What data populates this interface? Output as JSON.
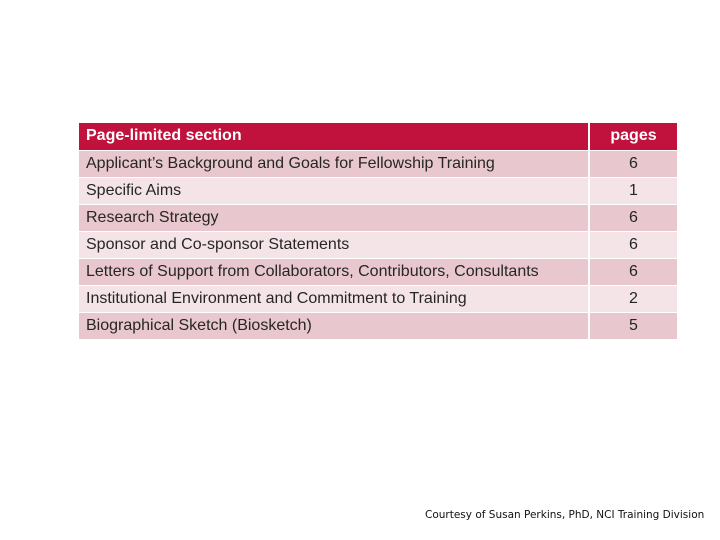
{
  "table": {
    "headers": {
      "section": "Page-limited section",
      "pages": "pages"
    },
    "rows": [
      {
        "section": "Applicant’s Background and Goals for Fellowship Training",
        "pages": "6"
      },
      {
        "section": "Specific Aims",
        "pages": "1"
      },
      {
        "section": "Research Strategy",
        "pages": "6"
      },
      {
        "section": "Sponsor and Co-sponsor Statements",
        "pages": "6"
      },
      {
        "section": "Letters of Support from Collaborators, Contributors, Consultants",
        "pages": "6"
      },
      {
        "section": "Institutional Environment and Commitment to Training",
        "pages": "2"
      },
      {
        "section": "Biographical Sketch (Biosketch)",
        "pages": "5"
      }
    ]
  },
  "footer": {
    "courtesy": "Courtesy of Susan Perkins, PhD, NCI Training Division"
  },
  "colors": {
    "header_background": "#c0123c",
    "row_dark": "#e8c8ce",
    "row_light": "#f4e4e7"
  }
}
